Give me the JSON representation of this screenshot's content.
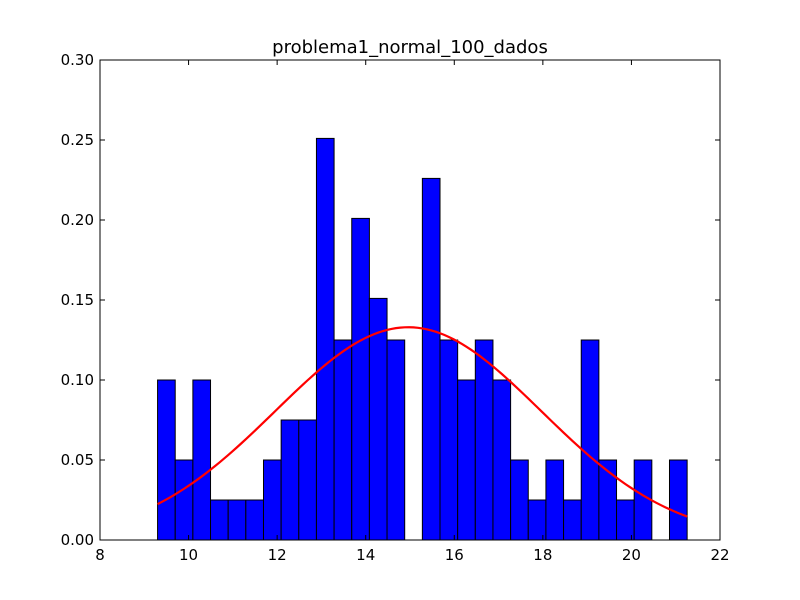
{
  "chart_data": {
    "type": "bar",
    "title": "problema1_normal_100_dados",
    "xlabel": "",
    "ylabel": "",
    "xlim": [
      8,
      22
    ],
    "ylim": [
      0,
      0.3
    ],
    "xticks": [
      "8",
      "10",
      "12",
      "14",
      "16",
      "18",
      "20",
      "22"
    ],
    "yticks": [
      "0.00",
      "0.05",
      "0.10",
      "0.15",
      "0.20",
      "0.25",
      "0.30"
    ],
    "grid": false,
    "legend": "none",
    "histogram": {
      "bin_start": 9.3,
      "bin_width": 0.3986,
      "densities": [
        0.1,
        0.05,
        0.1,
        0.025,
        0.025,
        0.025,
        0.05,
        0.075,
        0.075,
        0.251,
        0.125,
        0.201,
        0.151,
        0.125,
        0.0,
        0.226,
        0.125,
        0.1,
        0.125,
        0.1,
        0.05,
        0.025,
        0.05,
        0.025,
        0.125,
        0.05,
        0.025,
        0.05,
        0.0,
        0.05
      ],
      "color": "#0000ff",
      "edge_color": "#000000"
    },
    "curve": {
      "type": "line",
      "mean": 14.96,
      "sd": 3.0,
      "x_range": [
        9.3,
        21.26
      ],
      "color": "#ff0000"
    }
  }
}
